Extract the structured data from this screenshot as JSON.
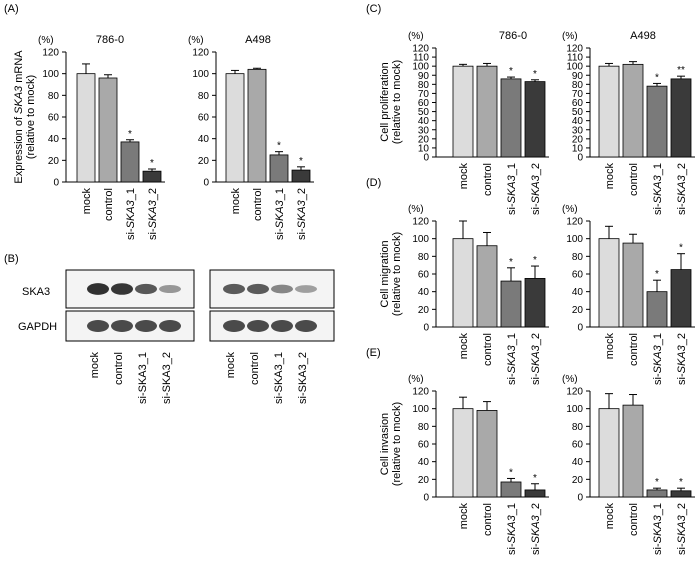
{
  "panel_labels": [
    "(A)",
    "(B)",
    "(C)",
    "(D)",
    "(E)"
  ],
  "x_categories": [
    "mock",
    "control",
    "si-SKA3_1",
    "si-SKA3_2"
  ],
  "bar_colors": [
    "#dcdcdc",
    "#a9a9a9",
    "#7a7a7a",
    "#3a3a3a"
  ],
  "blot": {
    "row_labels": [
      "SKA3",
      "GAPDH"
    ],
    "lanes": [
      "mock",
      "control",
      "si-SKA3_1",
      "si-SKA3_2"
    ],
    "ska3_intensity": [
      [
        0.95,
        0.92,
        0.72,
        0.35
      ],
      [
        0.7,
        0.7,
        0.45,
        0.3
      ]
    ],
    "gapdh_intensity": [
      [
        0.8,
        0.8,
        0.8,
        0.8
      ],
      [
        0.8,
        0.8,
        0.8,
        0.8
      ]
    ]
  },
  "chart_data": [
    {
      "id": "A-786",
      "panel": "(A)",
      "type": "bar",
      "title": "786-0",
      "unit_label": "(%)",
      "ylabel": "Expression of SKA3 mRNA (relative to mock)",
      "ylim": [
        0,
        120
      ],
      "yticks": [
        0,
        20,
        40,
        60,
        80,
        100,
        120
      ],
      "categories": [
        "mock",
        "control",
        "si-SKA3_1",
        "si-SKA3_2"
      ],
      "values": [
        100,
        96,
        37,
        10
      ],
      "errors": [
        9,
        3,
        2,
        2
      ],
      "sig": [
        "",
        "",
        "*",
        "*"
      ]
    },
    {
      "id": "A-A498",
      "panel": "(A)",
      "type": "bar",
      "title": "A498",
      "unit_label": "(%)",
      "ylabel": "",
      "ylim": [
        0,
        120
      ],
      "yticks": [
        0,
        20,
        40,
        60,
        80,
        100,
        120
      ],
      "categories": [
        "mock",
        "control",
        "si-SKA3_1",
        "si-SKA3_2"
      ],
      "values": [
        100,
        104,
        25,
        11
      ],
      "errors": [
        3,
        1,
        3,
        3
      ],
      "sig": [
        "",
        "",
        "*",
        "*"
      ]
    },
    {
      "id": "C-786",
      "panel": "(C)",
      "type": "bar",
      "title": "786-0",
      "unit_label": "(%)",
      "ylabel": "Cell proliferation (relative to mock)",
      "ylim": [
        0,
        120
      ],
      "yticks": [
        0,
        10,
        20,
        30,
        40,
        50,
        60,
        70,
        80,
        90,
        100,
        110,
        120
      ],
      "categories": [
        "mock",
        "control",
        "si-SKA3_1",
        "si-SKA3_2"
      ],
      "values": [
        100,
        100,
        86,
        83
      ],
      "errors": [
        2,
        3,
        2,
        2
      ],
      "sig": [
        "",
        "",
        "*",
        "*"
      ]
    },
    {
      "id": "C-A498",
      "panel": "(C)",
      "type": "bar",
      "title": "A498",
      "unit_label": "(%)",
      "ylabel": "",
      "ylim": [
        0,
        120
      ],
      "yticks": [
        0,
        10,
        20,
        30,
        40,
        50,
        60,
        70,
        80,
        90,
        100,
        110,
        120
      ],
      "categories": [
        "mock",
        "control",
        "si-SKA3_1",
        "si-SKA3_2"
      ],
      "values": [
        100,
        102,
        78,
        86
      ],
      "errors": [
        3,
        3,
        3,
        3
      ],
      "sig": [
        "",
        "",
        "*",
        "**"
      ]
    },
    {
      "id": "D-786",
      "panel": "(D)",
      "type": "bar",
      "title": "",
      "unit_label": "(%)",
      "ylabel": "Cell migration (relative to mock)",
      "ylim": [
        0,
        120
      ],
      "yticks": [
        0,
        20,
        40,
        60,
        80,
        100,
        120
      ],
      "categories": [
        "mock",
        "control",
        "si-SKA3_1",
        "si-SKA3_2"
      ],
      "values": [
        100,
        92,
        52,
        55
      ],
      "errors": [
        20,
        15,
        15,
        14
      ],
      "sig": [
        "",
        "",
        "*",
        "*"
      ]
    },
    {
      "id": "D-A498",
      "panel": "(D)",
      "type": "bar",
      "title": "",
      "unit_label": "(%)",
      "ylabel": "",
      "ylim": [
        0,
        120
      ],
      "yticks": [
        0,
        20,
        40,
        60,
        80,
        100,
        120
      ],
      "categories": [
        "mock",
        "control",
        "si-SKA3_1",
        "si-SKA3_2"
      ],
      "values": [
        100,
        95,
        40,
        65
      ],
      "errors": [
        14,
        10,
        13,
        18
      ],
      "sig": [
        "",
        "",
        "*",
        "*"
      ]
    },
    {
      "id": "E-786",
      "panel": "(E)",
      "type": "bar",
      "title": "",
      "unit_label": "(%)",
      "ylabel": "Cell invasion (relative to mock)",
      "ylim": [
        0,
        120
      ],
      "yticks": [
        0,
        20,
        40,
        60,
        80,
        100,
        120
      ],
      "categories": [
        "mock",
        "control",
        "si-SKA3_1",
        "si-SKA3_2"
      ],
      "values": [
        100,
        98,
        17,
        8
      ],
      "errors": [
        13,
        10,
        4,
        7
      ],
      "sig": [
        "",
        "",
        "*",
        "*"
      ]
    },
    {
      "id": "E-A498",
      "panel": "(E)",
      "type": "bar",
      "title": "",
      "unit_label": "(%)",
      "ylabel": "",
      "ylim": [
        0,
        120
      ],
      "yticks": [
        0,
        20,
        40,
        60,
        80,
        100,
        120
      ],
      "categories": [
        "mock",
        "control",
        "si-SKA3_1",
        "si-SKA3_2"
      ],
      "values": [
        100,
        104,
        8,
        7
      ],
      "errors": [
        17,
        12,
        2,
        3
      ],
      "sig": [
        "",
        "",
        "*",
        "*"
      ]
    }
  ]
}
